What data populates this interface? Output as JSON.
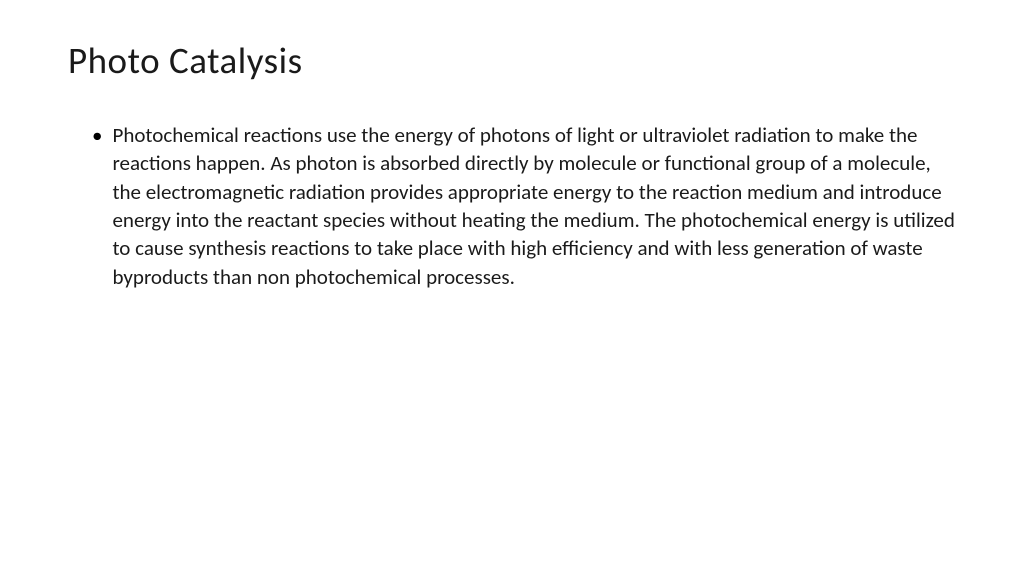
{
  "slide": {
    "title": "Photo Catalysis",
    "title_fontsize": 37,
    "title_color": "#1a1a1a",
    "title_weight": 300,
    "background_color": "#ffffff",
    "body_fontsize": 21,
    "body_color": "#1a1a1a",
    "body_line_height": 1.35,
    "font_family": "Calibri",
    "bullets": [
      {
        "text": "Photochemical reactions use the energy of photons of light or ultraviolet radiation to make the reactions happen. As photon is absorbed directly by molecule or functional group of a molecule, the electromagnetic radiation provides appropriate energy to the reaction medium and introduce energy into the reactant species without heating the medium. The photochemical energy is utilized to cause synthesis reactions to take place with high efficiency and with less generation of waste byproducts than non photochemical processes."
      }
    ],
    "bullet_marker": "•"
  }
}
